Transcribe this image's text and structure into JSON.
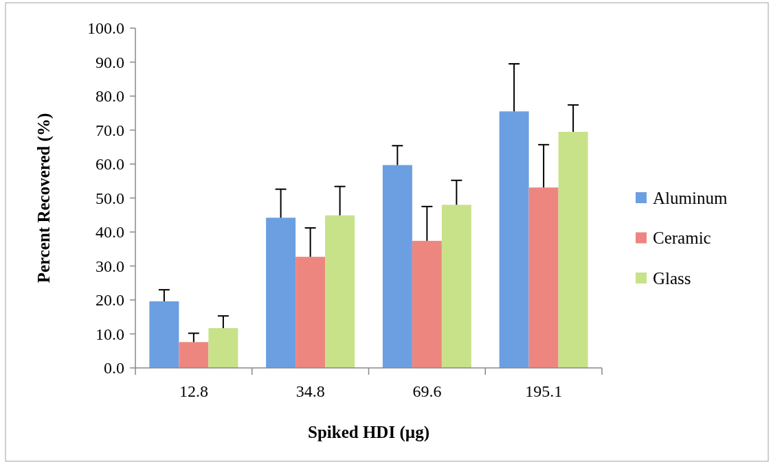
{
  "chart_data": {
    "type": "bar",
    "xlabel": "Spiked HDI (µg)",
    "ylabel": "Percent Recovered (%)",
    "categories": [
      "12.8",
      "34.8",
      "69.6",
      "195.1"
    ],
    "series": [
      {
        "name": "Aluminum",
        "color": "#6c9fe2",
        "values": [
          19.6,
          44.2,
          59.7,
          75.5
        ],
        "errors": [
          [
            19.6,
            23.0
          ],
          [
            44.2,
            52.6
          ],
          [
            59.7,
            65.4
          ],
          [
            75.5,
            89.5
          ]
        ]
      },
      {
        "name": "Ceramic",
        "color": "#ee8680",
        "values": [
          7.6,
          32.7,
          37.4,
          53.1
        ],
        "errors": [
          [
            7.6,
            10.2
          ],
          [
            32.7,
            41.2
          ],
          [
            37.4,
            47.5
          ],
          [
            53.1,
            65.7
          ]
        ]
      },
      {
        "name": "Glass",
        "color": "#c8e28a",
        "values": [
          11.7,
          44.9,
          48.0,
          69.5
        ],
        "errors": [
          [
            11.7,
            15.3
          ],
          [
            44.9,
            53.4
          ],
          [
            48.0,
            55.2
          ],
          [
            69.5,
            77.4
          ]
        ]
      }
    ],
    "ylim": [
      0,
      100
    ],
    "yticks": [
      {
        "value": 0,
        "label": "0.0"
      },
      {
        "value": 10,
        "label": "10.0"
      },
      {
        "value": 20,
        "label": "20.0"
      },
      {
        "value": 30,
        "label": "30.0"
      },
      {
        "value": 40,
        "label": "40.0"
      },
      {
        "value": 50,
        "label": "50.0"
      },
      {
        "value": 60,
        "label": "60.0"
      },
      {
        "value": 70,
        "label": "70.0"
      },
      {
        "value": 80,
        "label": "80.0"
      },
      {
        "value": 90,
        "label": "90.0"
      },
      {
        "value": 100,
        "label": "100.0"
      }
    ],
    "legend": "right"
  }
}
